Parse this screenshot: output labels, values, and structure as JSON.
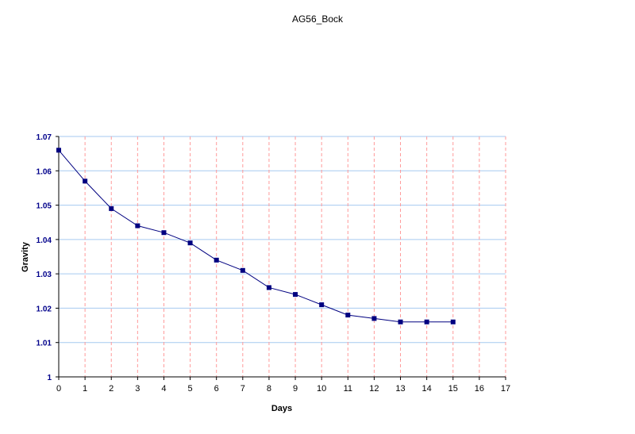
{
  "chart_data": {
    "type": "line",
    "title": "AG56_Bock",
    "xlabel": "Days",
    "ylabel": "Gravity",
    "xlim": [
      0,
      17
    ],
    "ylim": [
      1,
      1.07
    ],
    "x_ticks": [
      "0",
      "1",
      "2",
      "3",
      "4",
      "5",
      "6",
      "7",
      "8",
      "9",
      "10",
      "11",
      "12",
      "13",
      "14",
      "15",
      "16",
      "17"
    ],
    "y_ticks": [
      "1",
      "1.01",
      "1.02",
      "1.03",
      "1.04",
      "1.05",
      "1.06",
      "1.07"
    ],
    "grid": true,
    "series": [
      {
        "x": [
          0,
          1,
          2,
          3,
          4,
          5,
          6,
          7,
          8,
          9,
          10,
          11,
          12,
          13,
          14,
          15
        ],
        "values": [
          1.066,
          1.057,
          1.049,
          1.044,
          1.042,
          1.039,
          1.034,
          1.031,
          1.026,
          1.024,
          1.021,
          1.018,
          1.017,
          1.016,
          1.016,
          1.016
        ]
      }
    ],
    "colors": {
      "line": "#000080",
      "marker": "#000080",
      "h_grid": "#a6caf0",
      "v_grid": "#ff9a9a",
      "y_tick_text": "#00008b"
    }
  }
}
